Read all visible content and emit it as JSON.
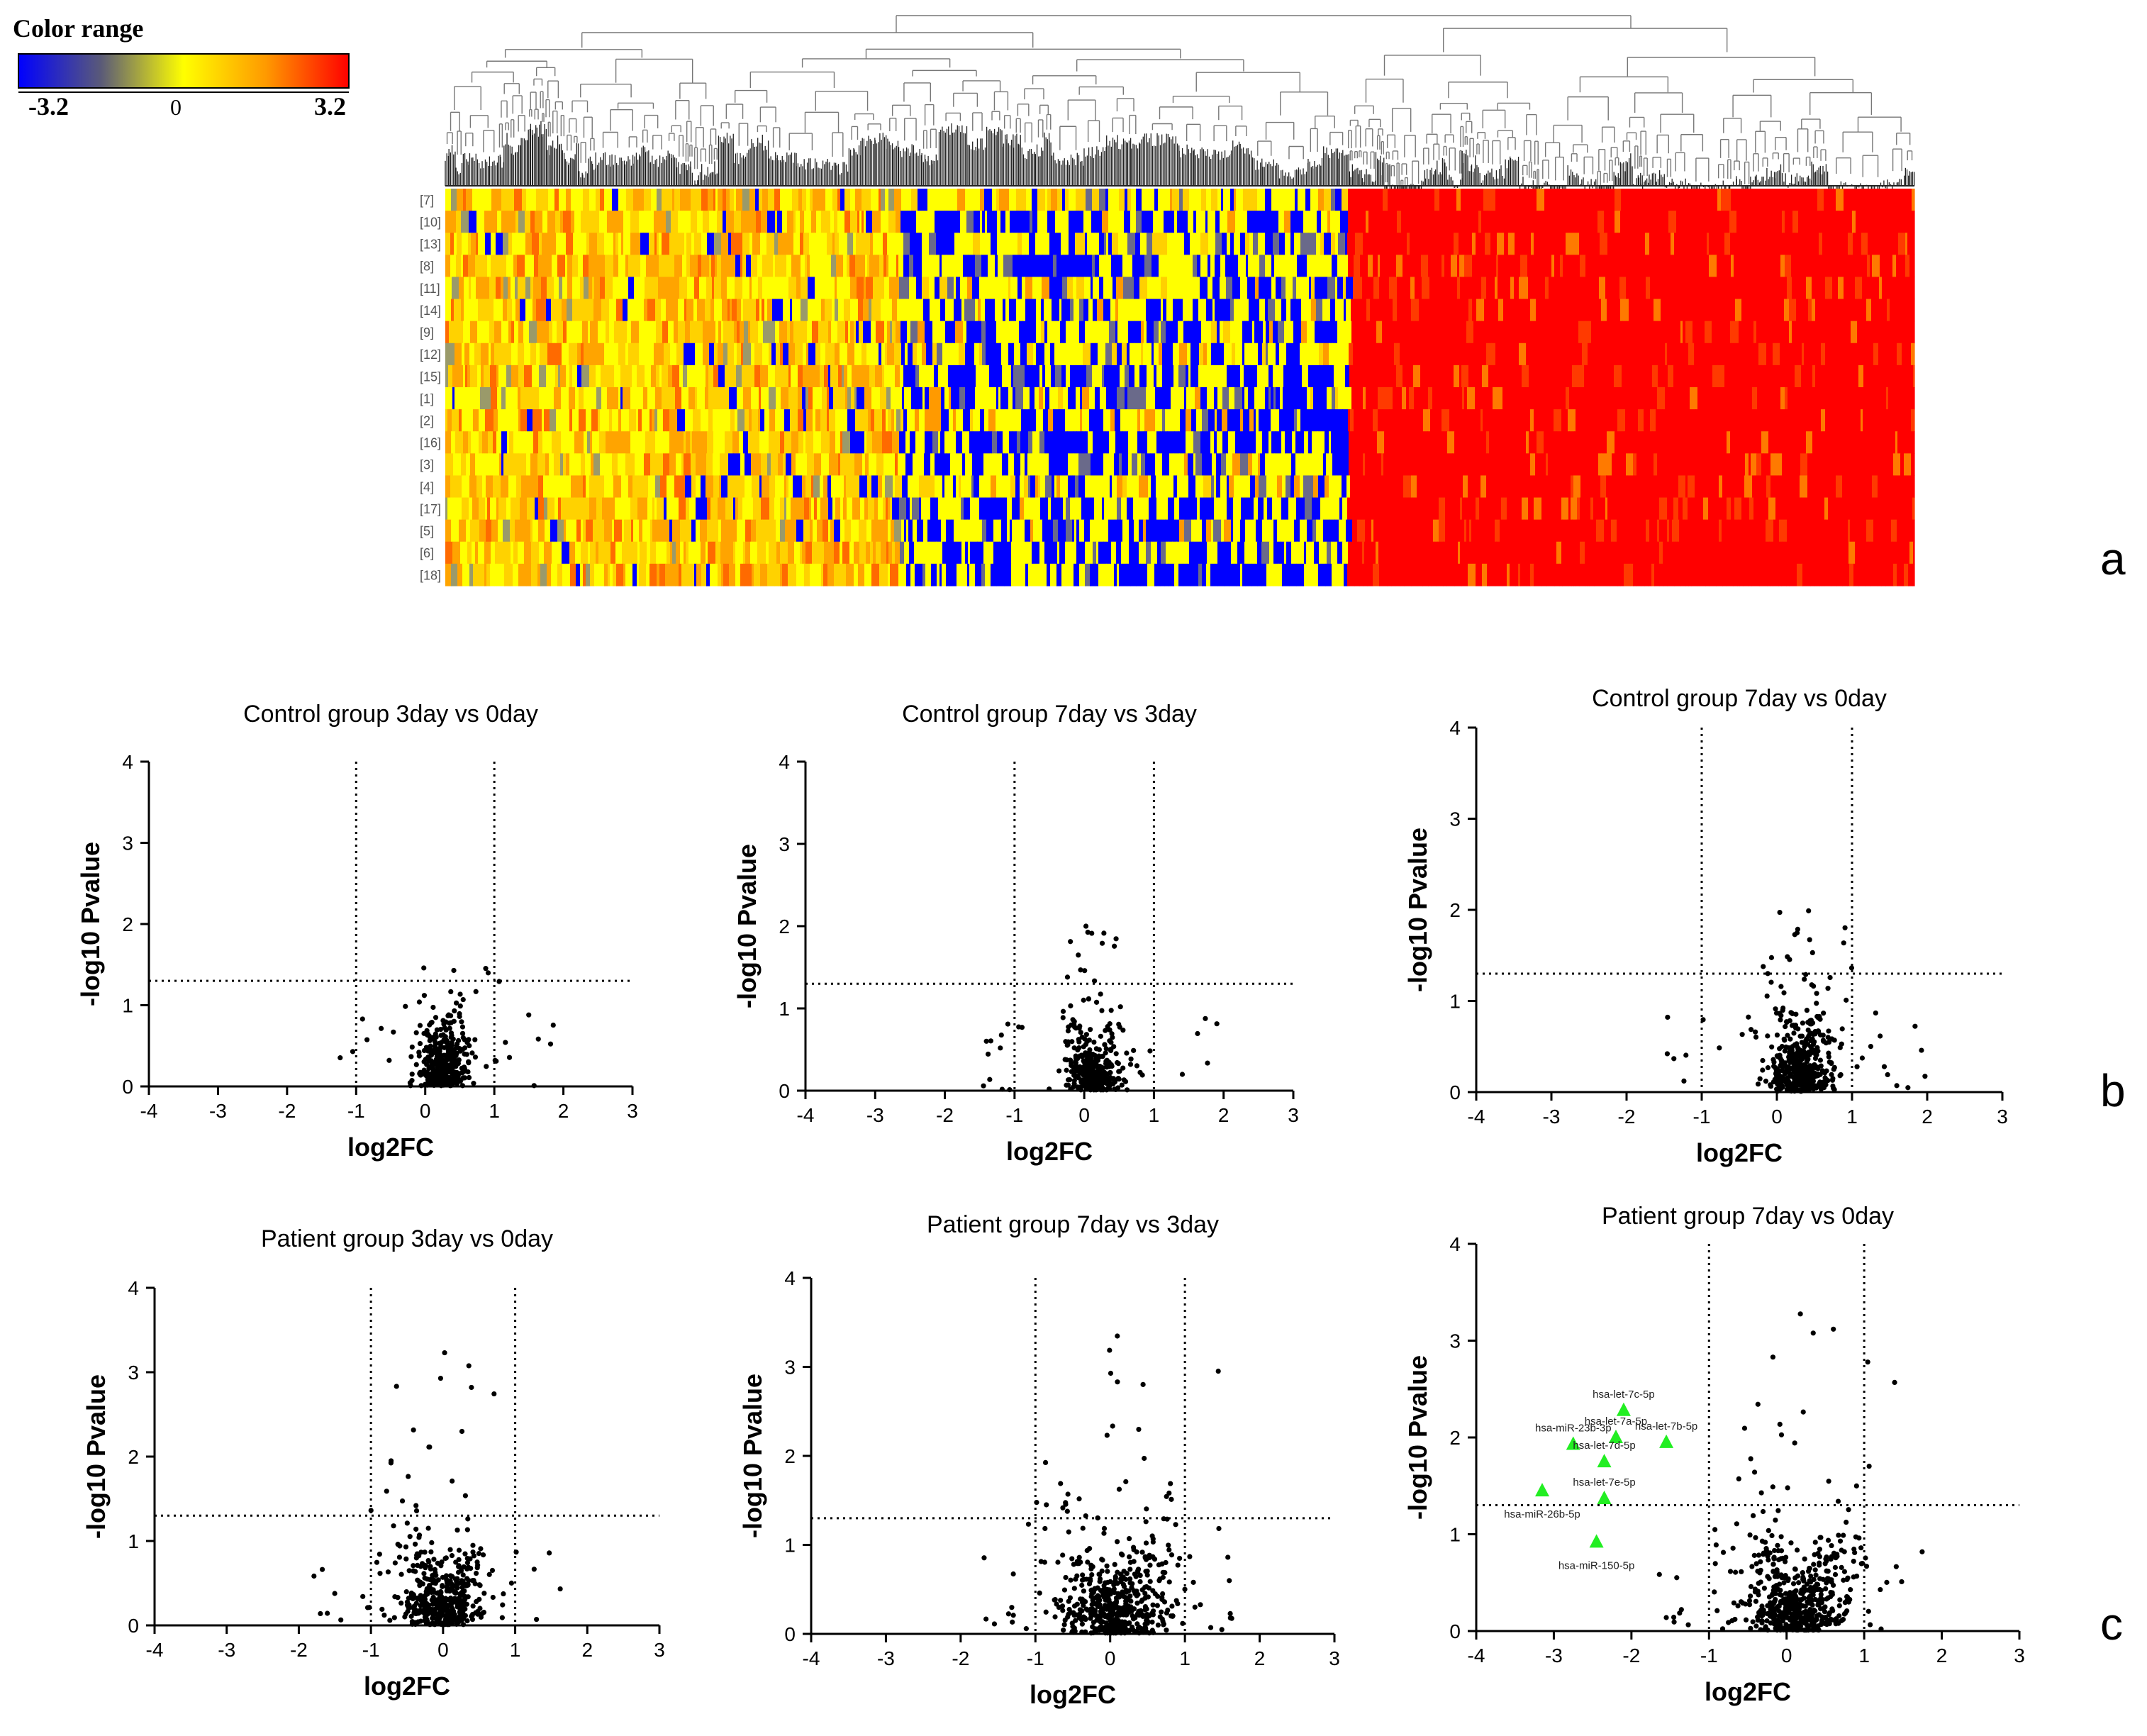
{
  "figure": {
    "panel_labels": [
      "a",
      "b",
      "c"
    ]
  },
  "colorbar": {
    "title": "Color range",
    "min_label": "-3.2",
    "mid_label": "0",
    "max_label": "3.2",
    "colors": [
      "#0000ff",
      "#ffff00",
      "#ff8c00",
      "#ff0000"
    ]
  },
  "chart_data": [
    {
      "type": "heatmap",
      "title": "",
      "row_labels": [
        "[7]",
        "[10]",
        "[13]",
        "[8]",
        "[11]",
        "[14]",
        "[9]",
        "[12]",
        "[15]",
        "[1]",
        "[2]",
        "[16]",
        "[3]",
        "[4]",
        "[17]",
        "[5]",
        "[6]",
        "[18]"
      ],
      "value_range": [
        -3.2,
        3.2
      ],
      "column_clusters": [
        "mixed (mostly yellow-orange)",
        "mixed (yellow/blue)",
        "high (red)"
      ],
      "dendrogram": true
    },
    {
      "type": "scatter",
      "title": "Control group 3day vs 0day",
      "xlabel": "log2FC",
      "ylabel": "-log10 Pvalue",
      "xlim": [
        -4,
        3
      ],
      "ylim": [
        0,
        4
      ],
      "xticks": [
        "-4",
        "-3",
        "-2",
        "-1",
        "0",
        "1",
        "2",
        "3"
      ],
      "yticks": [
        "0",
        "1",
        "2",
        "3",
        "4"
      ],
      "thresholds": {
        "vlines": [
          -1,
          1
        ],
        "hline": 1.3
      },
      "distribution": {
        "spread": 0.18,
        "center": 0.25,
        "ymax": 1.5,
        "count": 420
      }
    },
    {
      "type": "scatter",
      "title": "Control group 7day vs 3day",
      "xlabel": "log2FC",
      "ylabel": "-log10 Pvalue",
      "xlim": [
        -4,
        3
      ],
      "ylim": [
        0,
        4
      ],
      "xticks": [
        "-4",
        "-3",
        "-2",
        "-1",
        "0",
        "1",
        "2",
        "3"
      ],
      "yticks": [
        "0",
        "1",
        "2",
        "3",
        "4"
      ],
      "thresholds": {
        "vlines": [
          -1,
          1
        ],
        "hline": 1.3
      },
      "distribution": {
        "spread": 0.2,
        "center": 0.15,
        "ymax": 2.0,
        "count": 400
      }
    },
    {
      "type": "scatter",
      "title": "Control group 7day vs 0day",
      "xlabel": "log2FC",
      "ylabel": "-log10 Pvalue",
      "xlim": [
        -4,
        3
      ],
      "ylim": [
        0,
        4
      ],
      "xticks": [
        "-4",
        "-3",
        "-2",
        "-1",
        "0",
        "1",
        "2",
        "3"
      ],
      "yticks": [
        "0",
        "1",
        "2",
        "3",
        "4"
      ],
      "thresholds": {
        "vlines": [
          -1,
          1
        ],
        "hline": 1.3
      },
      "distribution": {
        "spread": 0.2,
        "center": 0.3,
        "ymax": 2.0,
        "count": 480
      }
    },
    {
      "type": "scatter",
      "title": "Patient group 3day vs 0day",
      "xlabel": "log2FC",
      "ylabel": "-log10 Pvalue",
      "xlim": [
        -4,
        3
      ],
      "ylim": [
        0,
        4
      ],
      "xticks": [
        "-4",
        "-3",
        "-2",
        "-1",
        "0",
        "1",
        "2",
        "3"
      ],
      "yticks": [
        "0",
        "1",
        "2",
        "3",
        "4"
      ],
      "thresholds": {
        "vlines": [
          -1,
          1
        ],
        "hline": 1.3
      },
      "distribution": {
        "spread": 0.3,
        "center": 0.0,
        "ymax": 3.45,
        "count": 480
      }
    },
    {
      "type": "scatter",
      "title": "Patient group 7day vs 3day",
      "xlabel": "log2FC",
      "ylabel": "-log10 Pvalue",
      "xlim": [
        -4,
        3
      ],
      "ylim": [
        0,
        4
      ],
      "xticks": [
        "-4",
        "-3",
        "-2",
        "-1",
        "0",
        "1",
        "2",
        "3"
      ],
      "yticks": [
        "0",
        "1",
        "2",
        "3",
        "4"
      ],
      "thresholds": {
        "vlines": [
          -1,
          1
        ],
        "hline": 1.3
      },
      "distribution": {
        "spread": 0.38,
        "center": 0.05,
        "ymax": 3.45,
        "count": 560
      }
    },
    {
      "type": "scatter",
      "title": "Patient group 7day vs 0day",
      "xlabel": "log2FC",
      "ylabel": "-log10 Pvalue",
      "xlim": [
        -4,
        3
      ],
      "ylim": [
        0,
        4
      ],
      "xticks": [
        "-4",
        "-3",
        "-2",
        "-1",
        "0",
        "1",
        "2",
        "3"
      ],
      "yticks": [
        "0",
        "1",
        "2",
        "3",
        "4"
      ],
      "thresholds": {
        "vlines": [
          -1,
          1
        ],
        "hline": 1.3
      },
      "distribution": {
        "spread": 0.38,
        "center": 0.15,
        "ymax": 3.5,
        "count": 580
      },
      "highlighted": [
        {
          "label": "hsa-let-7c-5p",
          "x": -2.1,
          "y": 2.28
        },
        {
          "label": "hsa-let-7a-5p",
          "x": -2.2,
          "y": 2.0
        },
        {
          "label": "hsa-let-7b-5p",
          "x": -1.55,
          "y": 1.95
        },
        {
          "label": "hsa-miR-23b-3p",
          "x": -2.75,
          "y": 1.93
        },
        {
          "label": "hsa-let-7d-5p",
          "x": -2.35,
          "y": 1.75
        },
        {
          "label": "hsa-miR-26b-5p",
          "x": -3.15,
          "y": 1.45
        },
        {
          "label": "hsa-let-7e-5p",
          "x": -2.35,
          "y": 1.37
        },
        {
          "label": "hsa-miR-150-5p",
          "x": -2.45,
          "y": 0.92
        }
      ],
      "highlight_color": "#22ee22"
    }
  ]
}
